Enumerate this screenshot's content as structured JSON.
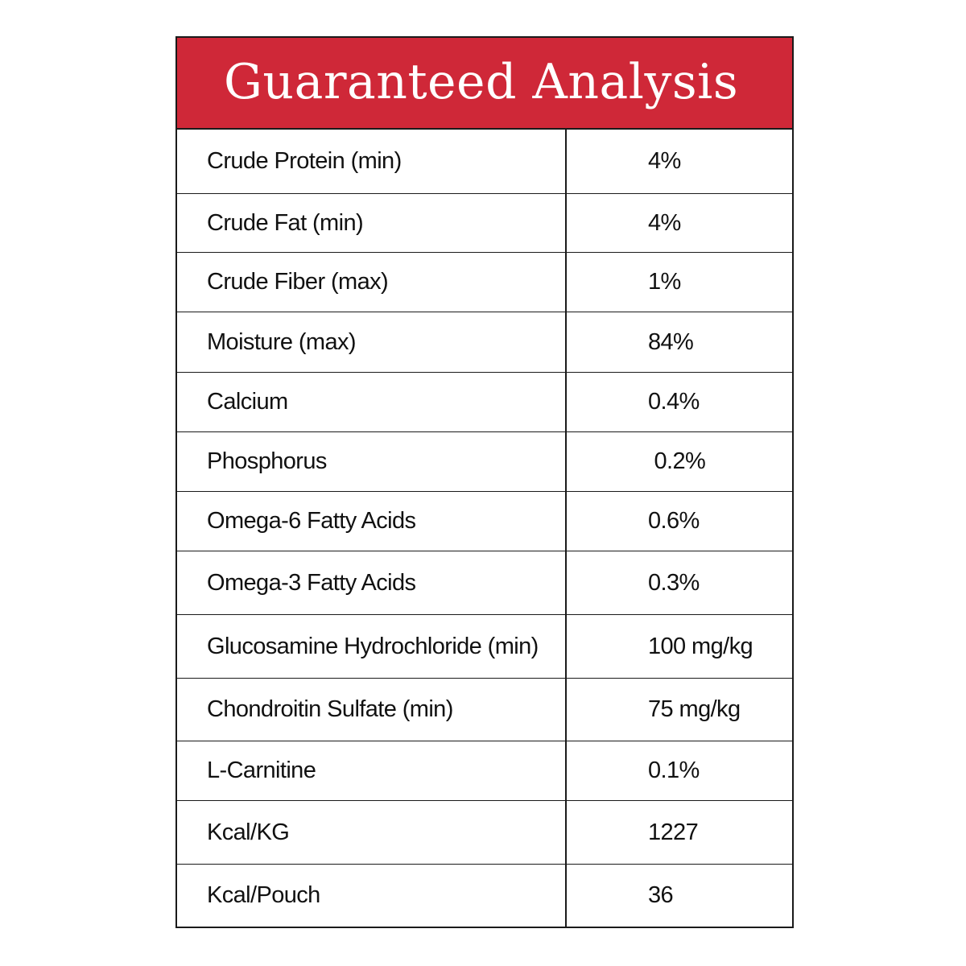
{
  "title": "Guaranteed Analysis",
  "colors": {
    "header": "#cf2838",
    "border": "#1a1a1a",
    "title_text": "#ffffff"
  },
  "rows": [
    {
      "name": "Crude Protein (min)",
      "value": "4%"
    },
    {
      "name": "Crude Fat (min)",
      "value": "4%"
    },
    {
      "name": "Crude Fiber (max)",
      "value": "1%"
    },
    {
      "name": "Moisture (max)",
      "value": "84%"
    },
    {
      "name": "Calcium",
      "value": "0.4%"
    },
    {
      "name": "Phosphorus",
      "value": " 0.2%"
    },
    {
      "name": "Omega-6 Fatty Acids",
      "value": "0.6%"
    },
    {
      "name": "Omega-3 Fatty Acids",
      "value": "0.3%"
    },
    {
      "name": "Glucosamine Hydrochloride (min)",
      "value": "100 mg/kg"
    },
    {
      "name": "Chondroitin Sulfate (min)",
      "value": "75 mg/kg"
    },
    {
      "name": "L-Carnitine",
      "value": "0.1%"
    },
    {
      "name": "Kcal/KG",
      "value": "1227"
    },
    {
      "name": "Kcal/Pouch",
      "value": "36"
    }
  ]
}
